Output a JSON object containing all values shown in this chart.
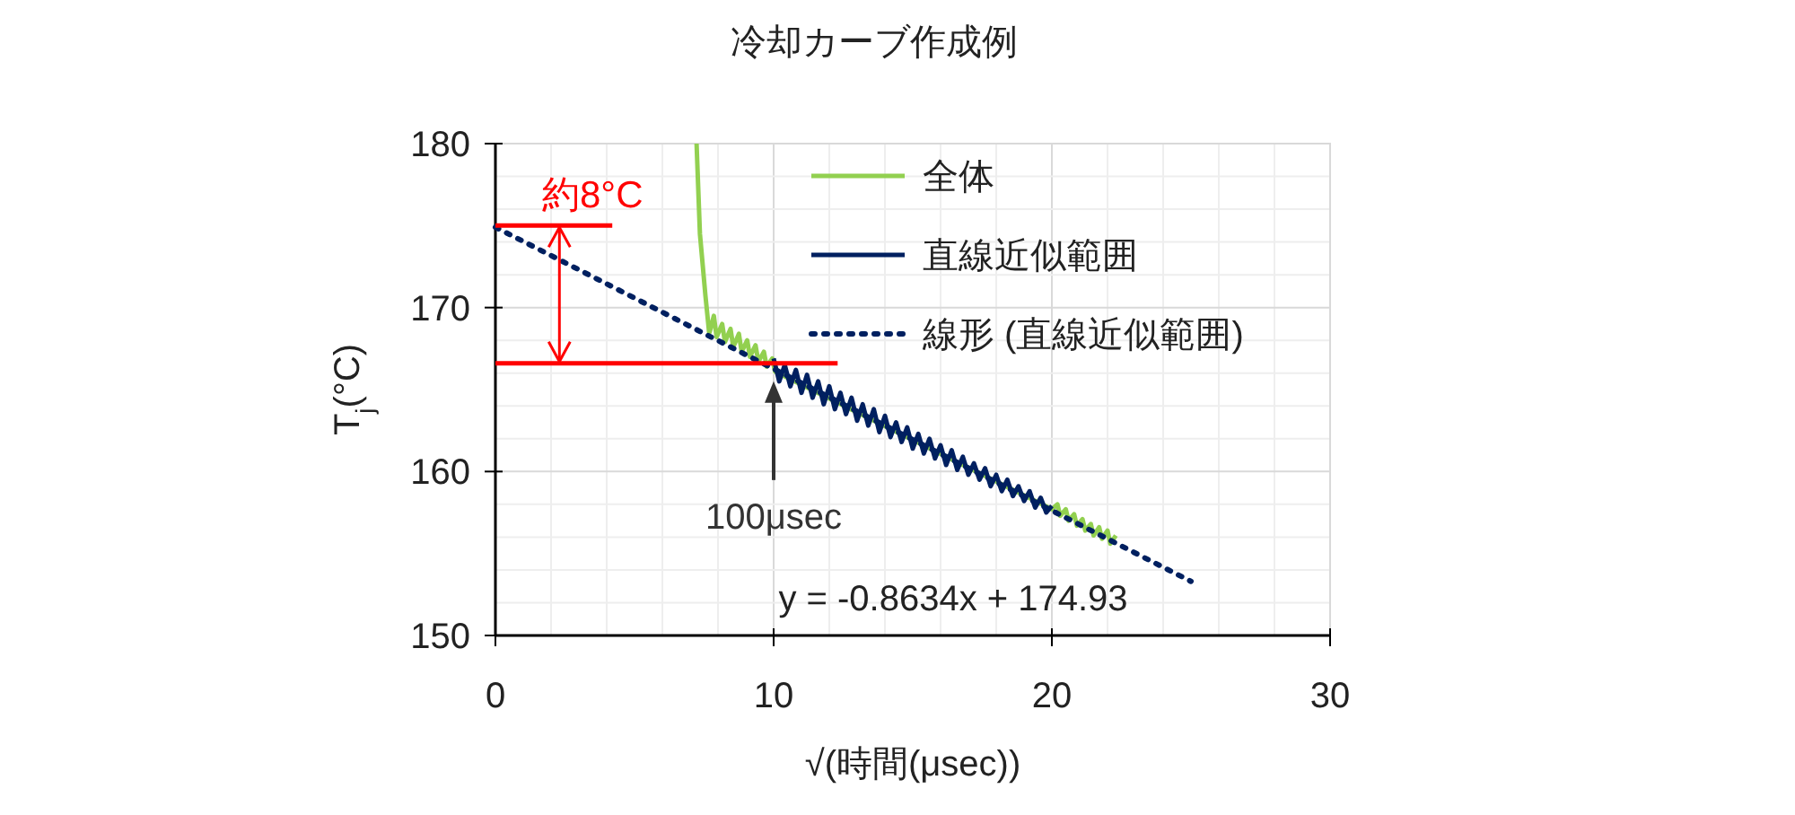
{
  "chart_data": {
    "type": "line",
    "title": "冷却カーブ作成例",
    "xlabel": "√(時間(μsec))",
    "ylabel": "T$_{j}$(°C)",
    "xlim": [
      0,
      30
    ],
    "xticks": [
      0,
      10,
      20,
      30
    ],
    "ylim": [
      150,
      180
    ],
    "yticks": [
      150,
      160,
      170,
      180
    ],
    "grid": true,
    "legend": "top right",
    "line_style": "solid",
    "marker": "none",
    "series": [
      {
        "name": "全体",
        "color": "#92d050",
        "x": [
          7.23,
          7.35,
          7.55,
          7.68,
          7.7,
          7.85,
          7.95,
          8.15,
          8.25,
          8.45,
          8.55,
          8.75,
          8.85,
          9.05,
          9.15,
          9.35,
          9.45,
          9.65,
          9.75,
          9.95,
          10.05,
          20.0,
          20.2,
          20.3,
          20.5,
          20.6,
          20.8,
          20.9,
          21.1,
          21.2,
          21.4,
          21.5,
          21.7,
          21.8,
          22.0,
          22.1,
          22.3
        ],
        "values": [
          180,
          174.5,
          170.7,
          168.5,
          168.5,
          169.5,
          168.2,
          169.0,
          167.9,
          168.7,
          167.6,
          168.4,
          167.3,
          168.0,
          167.0,
          167.7,
          166.7,
          167.3,
          166.4,
          166.9,
          166.1,
          157.7,
          158.0,
          157.3,
          157.7,
          157.0,
          157.4,
          156.7,
          157.1,
          156.4,
          156.8,
          156.1,
          156.6,
          155.9,
          156.4,
          155.6,
          156.1
        ]
      },
      {
        "name": "直線近似範囲",
        "color": "#002060",
        "x": [
          10.0,
          10.2,
          10.4,
          10.6,
          10.8,
          11.0,
          11.2,
          11.4,
          11.6,
          11.8,
          12.0,
          12.2,
          12.4,
          12.6,
          12.8,
          13.0,
          13.2,
          13.4,
          13.6,
          13.8,
          14.0,
          14.2,
          14.4,
          14.6,
          14.8,
          15.0,
          15.2,
          15.4,
          15.6,
          15.8,
          16.0,
          16.2,
          16.4,
          16.6,
          16.8,
          17.0,
          17.2,
          17.4,
          17.6,
          17.8,
          18.0,
          18.2,
          18.4,
          18.6,
          18.8,
          19.0,
          19.2,
          19.4,
          19.6,
          19.8,
          20.0
        ],
        "values": [
          166.9,
          165.5,
          166.5,
          165.2,
          166.2,
          164.8,
          165.9,
          164.5,
          165.5,
          164.1,
          165.2,
          163.8,
          164.8,
          163.5,
          164.5,
          163.1,
          164.1,
          162.8,
          163.8,
          162.4,
          163.4,
          162.1,
          163.0,
          161.8,
          162.7,
          161.4,
          162.3,
          161.1,
          162.0,
          160.8,
          161.6,
          160.4,
          161.3,
          160.1,
          160.9,
          159.8,
          160.5,
          159.5,
          160.2,
          159.1,
          159.8,
          158.8,
          159.5,
          158.5,
          159.1,
          158.2,
          158.8,
          157.8,
          158.4,
          157.5,
          157.9
        ]
      },
      {
        "name": "線形 (直線近似範囲)",
        "color": "#002060",
        "line_style": "dotted",
        "x": [
          0,
          25
        ],
        "values": [
          174.9,
          153.3
        ]
      },
      {
        "color": "#ff0000",
        "x": [
          0,
          4.2
        ],
        "values": [
          175,
          175
        ]
      },
      {
        "color": "#ff0000",
        "x": [
          0,
          12.3
        ],
        "values": [
          166.6,
          166.6
        ]
      }
    ],
    "annotations": [
      {
        "text": "約8°C",
        "x": 2.3,
        "y": 175
      },
      {
        "text": "100μsec",
        "x": 10,
        "y": 165.5
      },
      "y = -0.8634x + 174.93"
    ]
  }
}
